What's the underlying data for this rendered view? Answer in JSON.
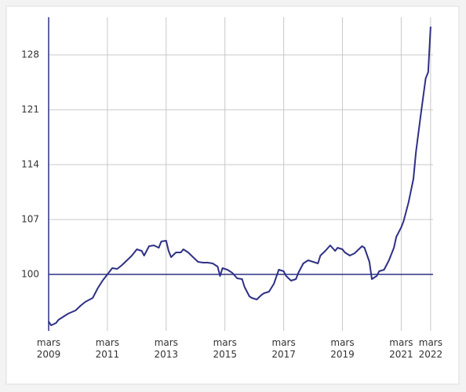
{
  "chart_data": {
    "type": "line",
    "x": [
      "2009-03",
      "2009-04",
      "2009-06",
      "2009-07",
      "2009-09",
      "2009-11",
      "2010-02",
      "2010-04",
      "2010-06",
      "2010-09",
      "2010-11",
      "2011-01",
      "2011-03",
      "2011-05",
      "2011-07",
      "2011-09",
      "2011-11",
      "2012-01",
      "2012-03",
      "2012-05",
      "2012-06",
      "2012-08",
      "2012-10",
      "2012-12",
      "2013-01",
      "2013-03",
      "2013-04",
      "2013-05",
      "2013-07",
      "2013-09",
      "2013-10",
      "2013-12",
      "2014-02",
      "2014-04",
      "2014-06",
      "2014-08",
      "2014-10",
      "2014-12",
      "2015-01",
      "2015-02",
      "2015-04",
      "2015-06",
      "2015-08",
      "2015-10",
      "2015-11",
      "2016-01",
      "2016-02",
      "2016-04",
      "2016-06",
      "2016-07",
      "2016-09",
      "2016-11",
      "2017-01",
      "2017-03",
      "2017-04",
      "2017-06",
      "2017-08",
      "2017-09",
      "2017-11",
      "2018-01",
      "2018-03",
      "2018-05",
      "2018-06",
      "2018-08",
      "2018-10",
      "2018-12",
      "2019-01",
      "2019-03",
      "2019-04",
      "2019-06",
      "2019-08",
      "2019-09",
      "2019-11",
      "2019-12",
      "2020-02",
      "2020-03",
      "2020-05",
      "2020-06",
      "2020-08",
      "2020-10",
      "2020-12",
      "2021-01",
      "2021-03",
      "2021-04",
      "2021-06",
      "2021-08",
      "2021-09",
      "2021-11",
      "2022-01",
      "2022-02",
      "2022-03"
    ],
    "series": [
      {
        "color": "#2e3085",
        "values": [
          94.0,
          93.5,
          93.8,
          94.2,
          94.6,
          95.0,
          95.4,
          96.0,
          96.5,
          97.0,
          98.2,
          99.2,
          100.0,
          100.8,
          100.7,
          101.2,
          101.8,
          102.4,
          103.2,
          103.0,
          102.4,
          103.6,
          103.7,
          103.4,
          104.2,
          104.3,
          103.0,
          102.2,
          102.8,
          102.8,
          103.2,
          102.8,
          102.2,
          101.6,
          101.5,
          101.5,
          101.4,
          101.0,
          99.8,
          100.8,
          100.6,
          100.2,
          99.5,
          99.4,
          98.4,
          97.2,
          97.0,
          96.8,
          97.4,
          97.6,
          97.8,
          98.8,
          100.6,
          100.4,
          99.8,
          99.2,
          99.4,
          100.2,
          101.4,
          101.8,
          101.6,
          101.4,
          102.4,
          103.0,
          103.7,
          103.0,
          103.4,
          103.2,
          102.8,
          102.4,
          102.7,
          103.0,
          103.6,
          103.4,
          101.6,
          99.4,
          99.8,
          100.4,
          100.6,
          101.8,
          103.4,
          104.8,
          106.0,
          106.8,
          109.2,
          112.2,
          115.6,
          120.4,
          125.0,
          125.8,
          131.6
        ]
      }
    ],
    "xlim": [
      "2009-03",
      "2022-04"
    ],
    "xticks": [
      {
        "value": "2009-03",
        "label": "mars 2009"
      },
      {
        "value": "2011-03",
        "label": "mars 2011"
      },
      {
        "value": "2013-03",
        "label": "mars 2013"
      },
      {
        "value": "2015-03",
        "label": "mars 2015"
      },
      {
        "value": "2017-03",
        "label": "mars 2017"
      },
      {
        "value": "2019-03",
        "label": "mars 2019"
      },
      {
        "value": "2021-03",
        "label": "mars 2021"
      },
      {
        "value": "2022-03",
        "label": "mars 2022"
      }
    ],
    "ylim": [
      92.8,
      132.8
    ],
    "yticks": [
      100,
      107,
      114,
      121,
      128
    ],
    "reference_line": 100,
    "grid": true
  }
}
